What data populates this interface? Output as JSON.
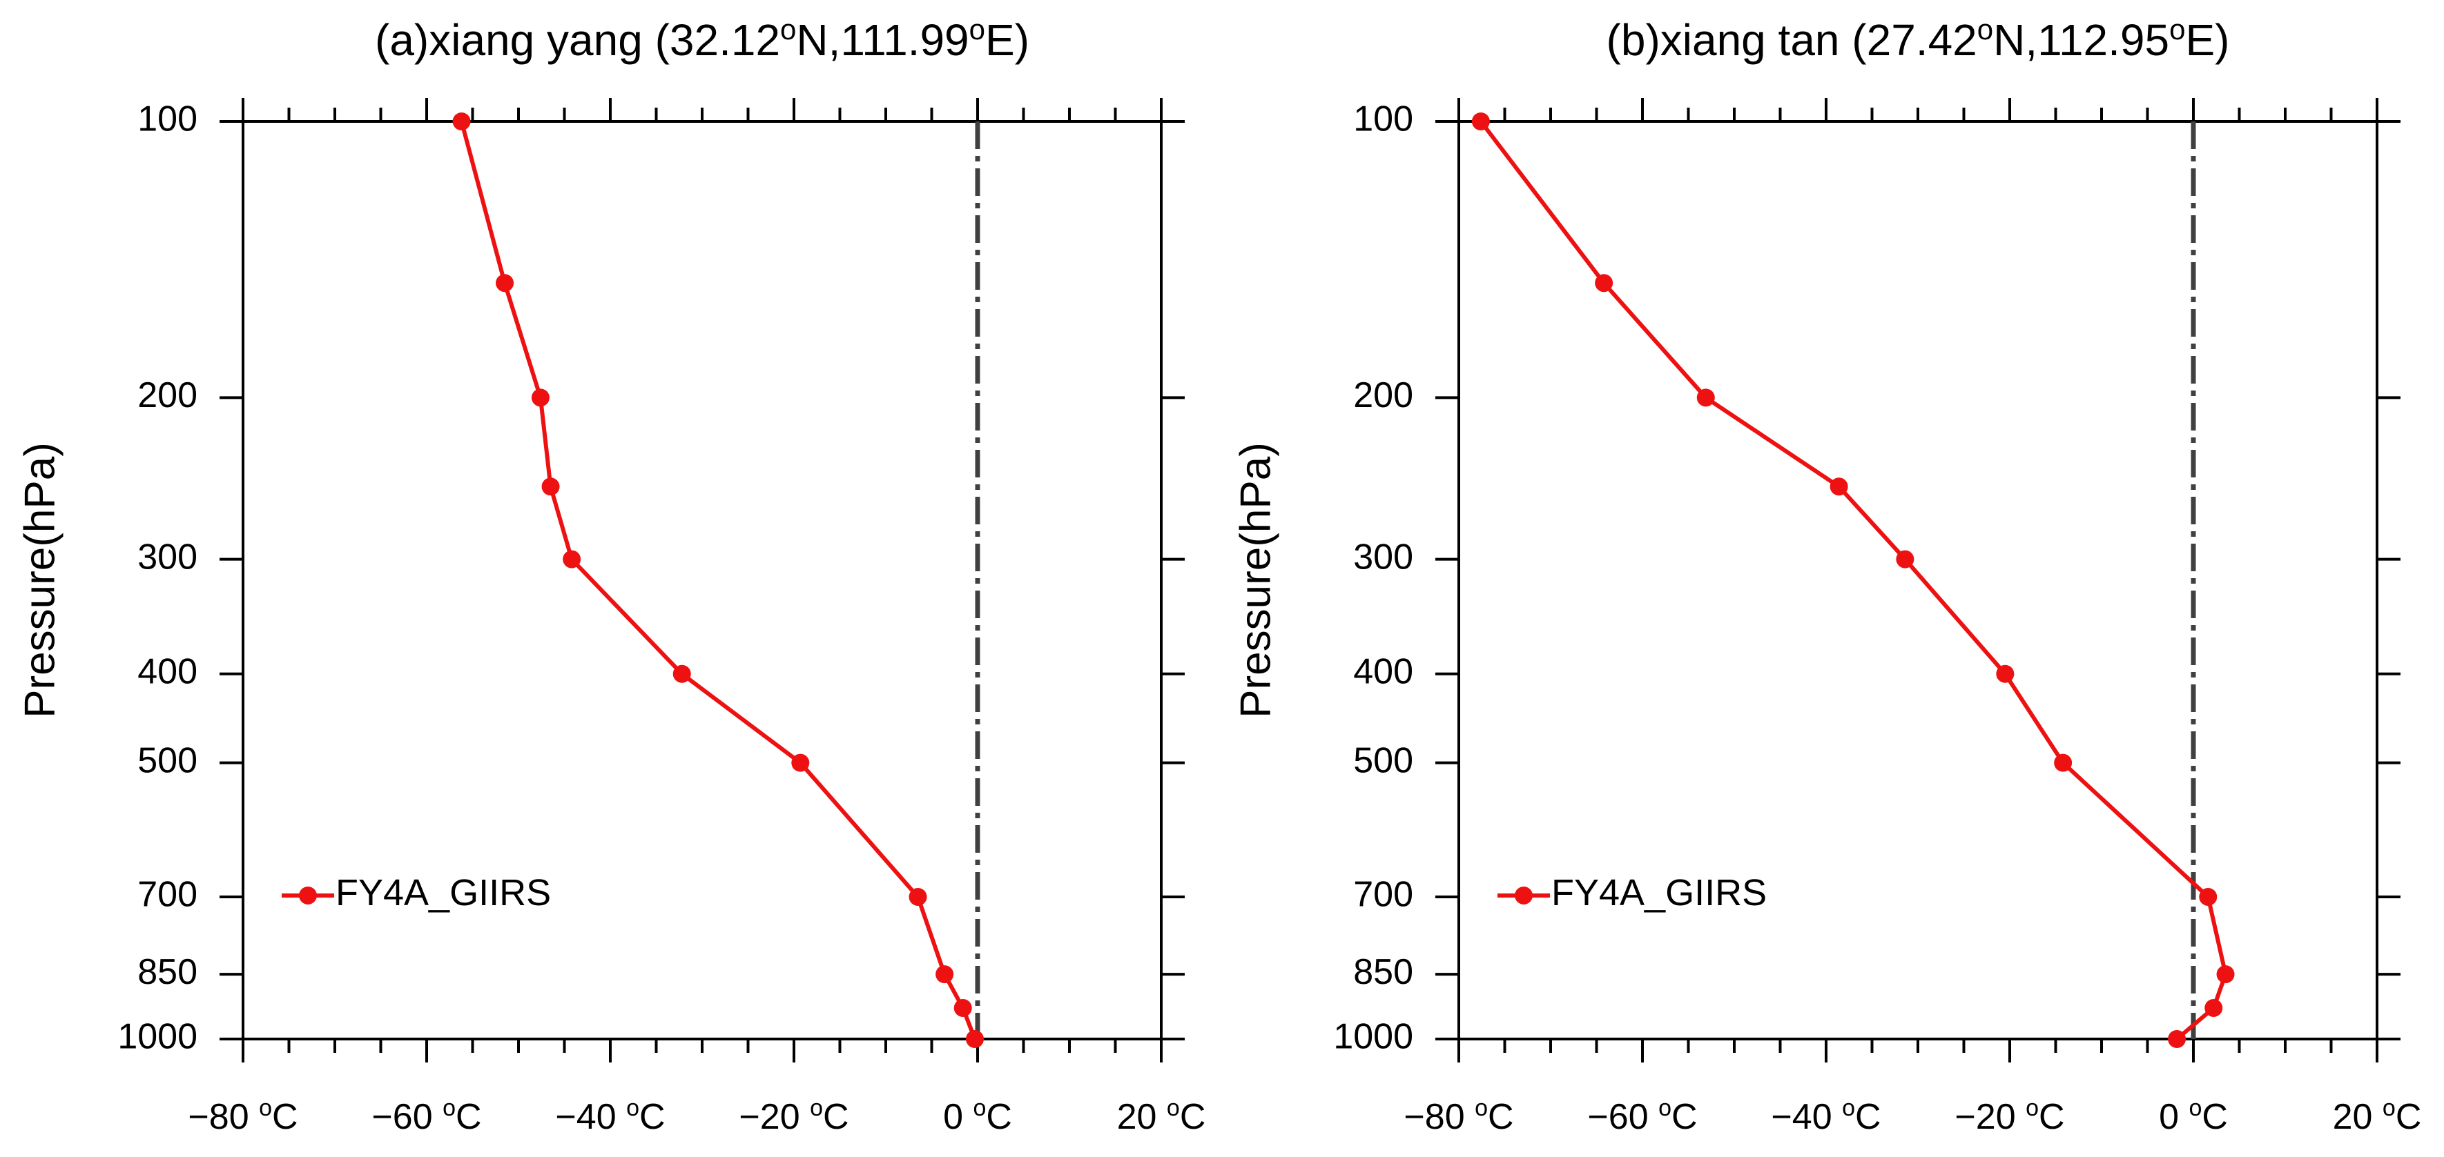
{
  "chart_data": [
    {
      "type": "line",
      "title_prefix": "(a)xiang yang (32.12",
      "title_mid": "N,111.99",
      "title_suffix": "E)",
      "title_degree": "o",
      "ylabel": "Pressure(hPa)",
      "xlabel": "",
      "xlim": [
        -80,
        20
      ],
      "ylim": [
        1000,
        100
      ],
      "yscale": "log",
      "x_ticks": [
        -80,
        -60,
        -40,
        -20,
        0,
        20
      ],
      "x_tick_labels": [
        "−80",
        "−60",
        "−40",
        "−20",
        "0",
        "20"
      ],
      "x_tick_unit": "C",
      "x_tick_degree": "o",
      "y_ticks": [
        100,
        200,
        300,
        400,
        500,
        700,
        850,
        1000
      ],
      "y_tick_labels": [
        "100",
        "200",
        "300",
        "400",
        "500",
        "700",
        "850",
        "1000"
      ],
      "reference_line_x": 0,
      "legend": {
        "label": "FY4A_GIIRS",
        "placement": "lower-left"
      },
      "series": [
        {
          "name": "FY4A_GIIRS",
          "color": "#ee1111",
          "points": [
            {
              "pressure": 100,
              "temperature": -56.2
            },
            {
              "pressure": 150,
              "temperature": -51.5
            },
            {
              "pressure": 200,
              "temperature": -47.6
            },
            {
              "pressure": 250,
              "temperature": -46.5
            },
            {
              "pressure": 300,
              "temperature": -44.2
            },
            {
              "pressure": 400,
              "temperature": -32.2
            },
            {
              "pressure": 500,
              "temperature": -19.3
            },
            {
              "pressure": 700,
              "temperature": -6.5
            },
            {
              "pressure": 850,
              "temperature": -3.6
            },
            {
              "pressure": 925,
              "temperature": -1.6
            },
            {
              "pressure": 1000,
              "temperature": -0.3
            }
          ]
        }
      ]
    },
    {
      "type": "line",
      "title_prefix": "(b)xiang tan (27.42",
      "title_mid": "N,112.95",
      "title_suffix": "E)",
      "title_degree": "o",
      "ylabel": "Pressure(hPa)",
      "xlabel": "",
      "xlim": [
        -80,
        20
      ],
      "ylim": [
        1000,
        100
      ],
      "yscale": "log",
      "x_ticks": [
        -80,
        -60,
        -40,
        -20,
        0,
        20
      ],
      "x_tick_labels": [
        "−80",
        "−60",
        "−40",
        "−20",
        "0",
        "20"
      ],
      "x_tick_unit": "C",
      "x_tick_degree": "o",
      "y_ticks": [
        100,
        200,
        300,
        400,
        500,
        700,
        850,
        1000
      ],
      "y_tick_labels": [
        "100",
        "200",
        "300",
        "400",
        "500",
        "700",
        "850",
        "1000"
      ],
      "reference_line_x": 0,
      "legend": {
        "label": "FY4A_GIIRS",
        "placement": "lower-left"
      },
      "series": [
        {
          "name": "FY4A_GIIRS",
          "color": "#ee1111",
          "points": [
            {
              "pressure": 100,
              "temperature": -77.6
            },
            {
              "pressure": 150,
              "temperature": -64.2
            },
            {
              "pressure": 200,
              "temperature": -53.1
            },
            {
              "pressure": 250,
              "temperature": -38.6
            },
            {
              "pressure": 300,
              "temperature": -31.4
            },
            {
              "pressure": 400,
              "temperature": -20.5
            },
            {
              "pressure": 500,
              "temperature": -14.2
            },
            {
              "pressure": 700,
              "temperature": 1.6
            },
            {
              "pressure": 850,
              "temperature": 3.5
            },
            {
              "pressure": 925,
              "temperature": 2.2
            },
            {
              "pressure": 1000,
              "temperature": -1.8
            }
          ]
        }
      ]
    }
  ]
}
